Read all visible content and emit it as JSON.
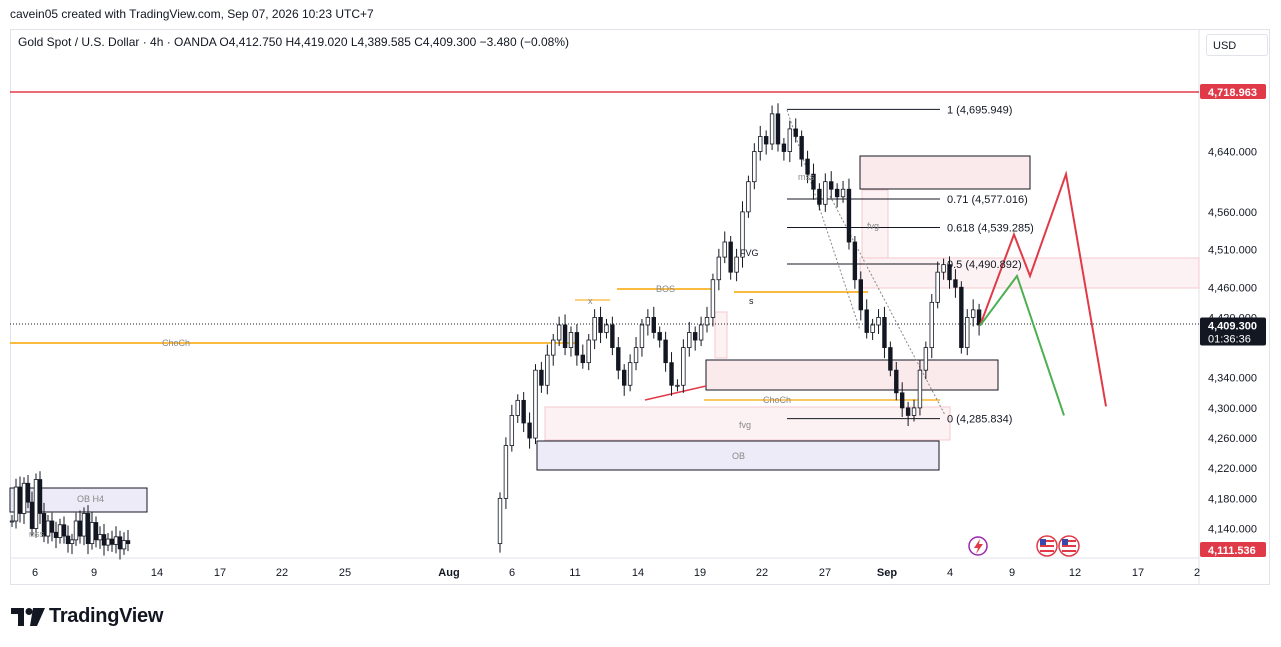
{
  "header": {
    "credit": "cavein05 created with TradingView.com, Sep 07, 2026 10:23 UTC+7",
    "legend": "Gold Spot / U.S. Dollar · 4h · OANDA  O4,412.750  H4,419.020  L4,389.585  C4,409.300  −3.480 (−0.08%)",
    "currency": "USD"
  },
  "brand": {
    "name": "TradingView"
  },
  "colors": {
    "up": "#131722",
    "down": "#131722",
    "orange": "#f7a600",
    "red": "#e03a48",
    "green": "#4caf50",
    "price_tag": "#131722"
  },
  "chart_data": {
    "type": "candlestick",
    "title": "",
    "symbol": "Gold Spot / U.S. Dollar · 4h · OANDA",
    "ylim": [
      4100,
      4760
    ],
    "y_ticks": [
      "4,640.000",
      "4,560.000",
      "4,510.000",
      "4,460.000",
      "4,420.000",
      "4,340.000",
      "4,300.000",
      "4,260.000",
      "4,220.000",
      "4,180.000",
      "4,140.000"
    ],
    "y_tick_values": [
      4640,
      4560,
      4510,
      4460,
      4420,
      4340,
      4300,
      4260,
      4220,
      4180,
      4140
    ],
    "x_ticks": [
      "6",
      "9",
      "14",
      "17",
      "22",
      "25",
      "Aug",
      "6",
      "11",
      "14",
      "19",
      "22",
      "27",
      "Sep",
      "4",
      "9",
      "12",
      "17",
      "2"
    ],
    "price_tags": [
      {
        "label": "4,718.963",
        "value": 4718.963,
        "color": "#e03a48"
      },
      {
        "label": "4,409.300",
        "value": 4409.3,
        "color": "#131722",
        "sub": "01:36:36"
      },
      {
        "label": "4,111.536",
        "value": 4111.536,
        "color": "#e03a48"
      }
    ],
    "fib_levels": [
      {
        "label": "1 (4,695.949)",
        "value": 4695.949
      },
      {
        "label": "0.71 (4,577.016)",
        "value": 4577.016
      },
      {
        "label": "0.618 (4,539.285)",
        "value": 4539.285
      },
      {
        "label": "0.5 (4,490.892)",
        "value": 4490.892
      },
      {
        "label": "0 (4,285.834)",
        "value": 4285.834
      }
    ],
    "annotations": [
      "ChoCh",
      "BOS",
      "x",
      "s",
      "FVG",
      "mss",
      "fvg",
      "ChoCh",
      "fvg",
      "OB",
      "OB H4",
      "MSS"
    ],
    "projection_red": [
      [
        4409,
        0
      ],
      [
        4530,
        1
      ],
      [
        4475,
        2
      ],
      [
        4610,
        3
      ],
      [
        4302,
        4
      ]
    ],
    "projection_green": [
      [
        4409,
        0
      ],
      [
        4475,
        1
      ],
      [
        4290,
        2
      ]
    ],
    "candles_close": [
      4150,
      4195,
      4160,
      4200,
      4175,
      4140,
      4205,
      4160,
      4130,
      4150,
      4135,
      4128,
      4145,
      4130,
      4120,
      4125,
      4150,
      4130,
      4160,
      4120,
      4148,
      4125,
      4132,
      4118,
      4126,
      4119,
      4129,
      4113,
      4124,
      4120,
      4180,
      4250,
      4290,
      4310,
      4280,
      4260,
      4350,
      4330,
      4370,
      4390,
      4410,
      4380,
      4400,
      4370,
      4360,
      4390,
      4420,
      4400,
      4410,
      4380,
      4350,
      4330,
      4360,
      4380,
      4410,
      4420,
      4400,
      4390,
      4360,
      4330,
      4330,
      4380,
      4400,
      4390,
      4410,
      4420,
      4470,
      4500,
      4520,
      4480,
      4500,
      4560,
      4600,
      4640,
      4660,
      4650,
      4690,
      4650,
      4640,
      4670,
      4660,
      4630,
      4610,
      4590,
      4570,
      4600,
      4590,
      4580,
      4590,
      4520,
      4470,
      4430,
      4400,
      4410,
      4420,
      4380,
      4350,
      4320,
      4300,
      4290,
      4300,
      4350,
      4380,
      4440,
      4480,
      4490,
      4470,
      4460,
      4380,
      4420,
      4430,
      4410
    ]
  }
}
